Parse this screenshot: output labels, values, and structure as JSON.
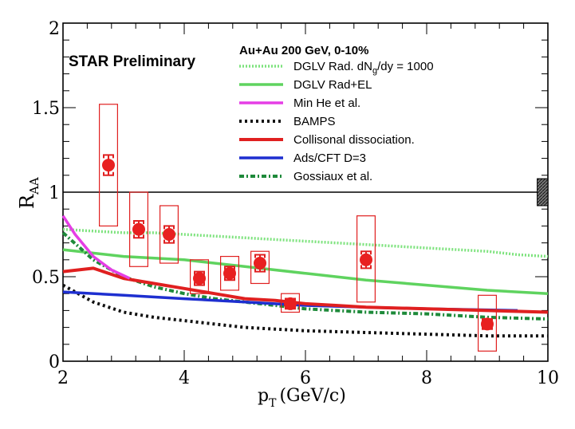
{
  "chart_data": {
    "type": "scatter",
    "header": "Au+Au 200 GeV, 0-10%",
    "watermark": "STAR Preliminary",
    "xlabel": {
      "main": "p",
      "sub": "T",
      "unit": "(GeV/c)"
    },
    "ylabel": {
      "main": "R",
      "sub": "AA"
    },
    "xlim": [
      2,
      10
    ],
    "ylim": [
      0,
      2
    ],
    "xticks": [
      "2",
      "4",
      "6",
      "8",
      "10"
    ],
    "yticks": [
      "0",
      "0.5",
      "1",
      "1.5",
      "2"
    ],
    "legend": [
      {
        "key": "dglv1000",
        "label": "DGLV Rad. dN",
        "sub": "g",
        "label2": "/dy = 1000"
      },
      {
        "key": "dglvradel",
        "label": "DGLV Rad+EL"
      },
      {
        "key": "minhe",
        "label": "Min He et al."
      },
      {
        "key": "bamps",
        "label": "BAMPS"
      },
      {
        "key": "colldiss",
        "label": "Collisonal dissociation."
      },
      {
        "key": "adscft",
        "label": "Ads/CFT D=3"
      },
      {
        "key": "gossiaux",
        "label": "Gossiaux et al."
      }
    ],
    "data_points": {
      "x": [
        2.75,
        3.25,
        3.75,
        4.25,
        4.75,
        5.25,
        5.75,
        7.0,
        9.0
      ],
      "y": [
        1.16,
        0.78,
        0.75,
        0.49,
        0.52,
        0.58,
        0.34,
        0.6,
        0.22
      ],
      "stat_err": [
        0.06,
        0.05,
        0.05,
        0.04,
        0.04,
        0.05,
        0.03,
        0.05,
        0.03
      ],
      "sys_low": [
        0.8,
        0.56,
        0.58,
        0.4,
        0.42,
        0.46,
        0.29,
        0.35,
        0.06
      ],
      "sys_high": [
        1.52,
        1.0,
        0.92,
        0.6,
        0.62,
        0.65,
        0.4,
        0.86,
        0.39
      ],
      "sys_halfwidth": 0.15
    },
    "reference_line": 1,
    "global_uncertainty": {
      "x": 9.85,
      "low": 0.92,
      "high": 1.08
    },
    "series": [
      {
        "name": "dglv1000",
        "x": [
          2,
          2.5,
          3,
          3.5,
          4,
          4.5,
          5,
          5.5,
          6,
          6.5,
          7,
          7.5,
          8,
          8.5,
          9,
          9.5,
          10
        ],
        "y": [
          0.78,
          0.77,
          0.76,
          0.76,
          0.75,
          0.74,
          0.73,
          0.72,
          0.71,
          0.7,
          0.69,
          0.68,
          0.67,
          0.66,
          0.65,
          0.63,
          0.62
        ]
      },
      {
        "name": "dglvradel",
        "x": [
          2,
          3,
          4,
          5,
          6,
          7,
          8,
          9,
          10
        ],
        "y": [
          0.66,
          0.62,
          0.6,
          0.56,
          0.52,
          0.48,
          0.45,
          0.42,
          0.4
        ]
      },
      {
        "name": "minhe",
        "x": [
          2,
          2.2,
          2.5,
          2.8,
          3.1
        ],
        "y": [
          0.86,
          0.75,
          0.62,
          0.54,
          0.49
        ]
      },
      {
        "name": "bamps",
        "x": [
          2,
          2.5,
          3,
          3.5,
          4,
          4.5,
          5,
          5.5,
          6,
          7,
          8,
          9,
          10
        ],
        "y": [
          0.45,
          0.35,
          0.29,
          0.26,
          0.24,
          0.22,
          0.2,
          0.19,
          0.18,
          0.17,
          0.16,
          0.15,
          0.15
        ]
      },
      {
        "name": "colldiss",
        "x": [
          2,
          2.5,
          3,
          3.5,
          4,
          4.5,
          5,
          5.5,
          6,
          6.5,
          7,
          8,
          9,
          10
        ],
        "y": [
          0.53,
          0.55,
          0.49,
          0.46,
          0.43,
          0.4,
          0.37,
          0.36,
          0.34,
          0.33,
          0.32,
          0.31,
          0.3,
          0.29
        ]
      },
      {
        "name": "adscft",
        "x": [
          2,
          3,
          4,
          5,
          6,
          7,
          8,
          9.5
        ],
        "y": [
          0.41,
          0.39,
          0.37,
          0.35,
          0.33,
          0.32,
          0.31,
          0.3
        ]
      },
      {
        "name": "gossiaux",
        "x": [
          2,
          2.5,
          3,
          3.5,
          4,
          4.5,
          5,
          5.5,
          6,
          7,
          8,
          9,
          10
        ],
        "y": [
          0.76,
          0.6,
          0.5,
          0.44,
          0.4,
          0.37,
          0.35,
          0.33,
          0.31,
          0.29,
          0.28,
          0.26,
          0.25
        ]
      }
    ]
  }
}
